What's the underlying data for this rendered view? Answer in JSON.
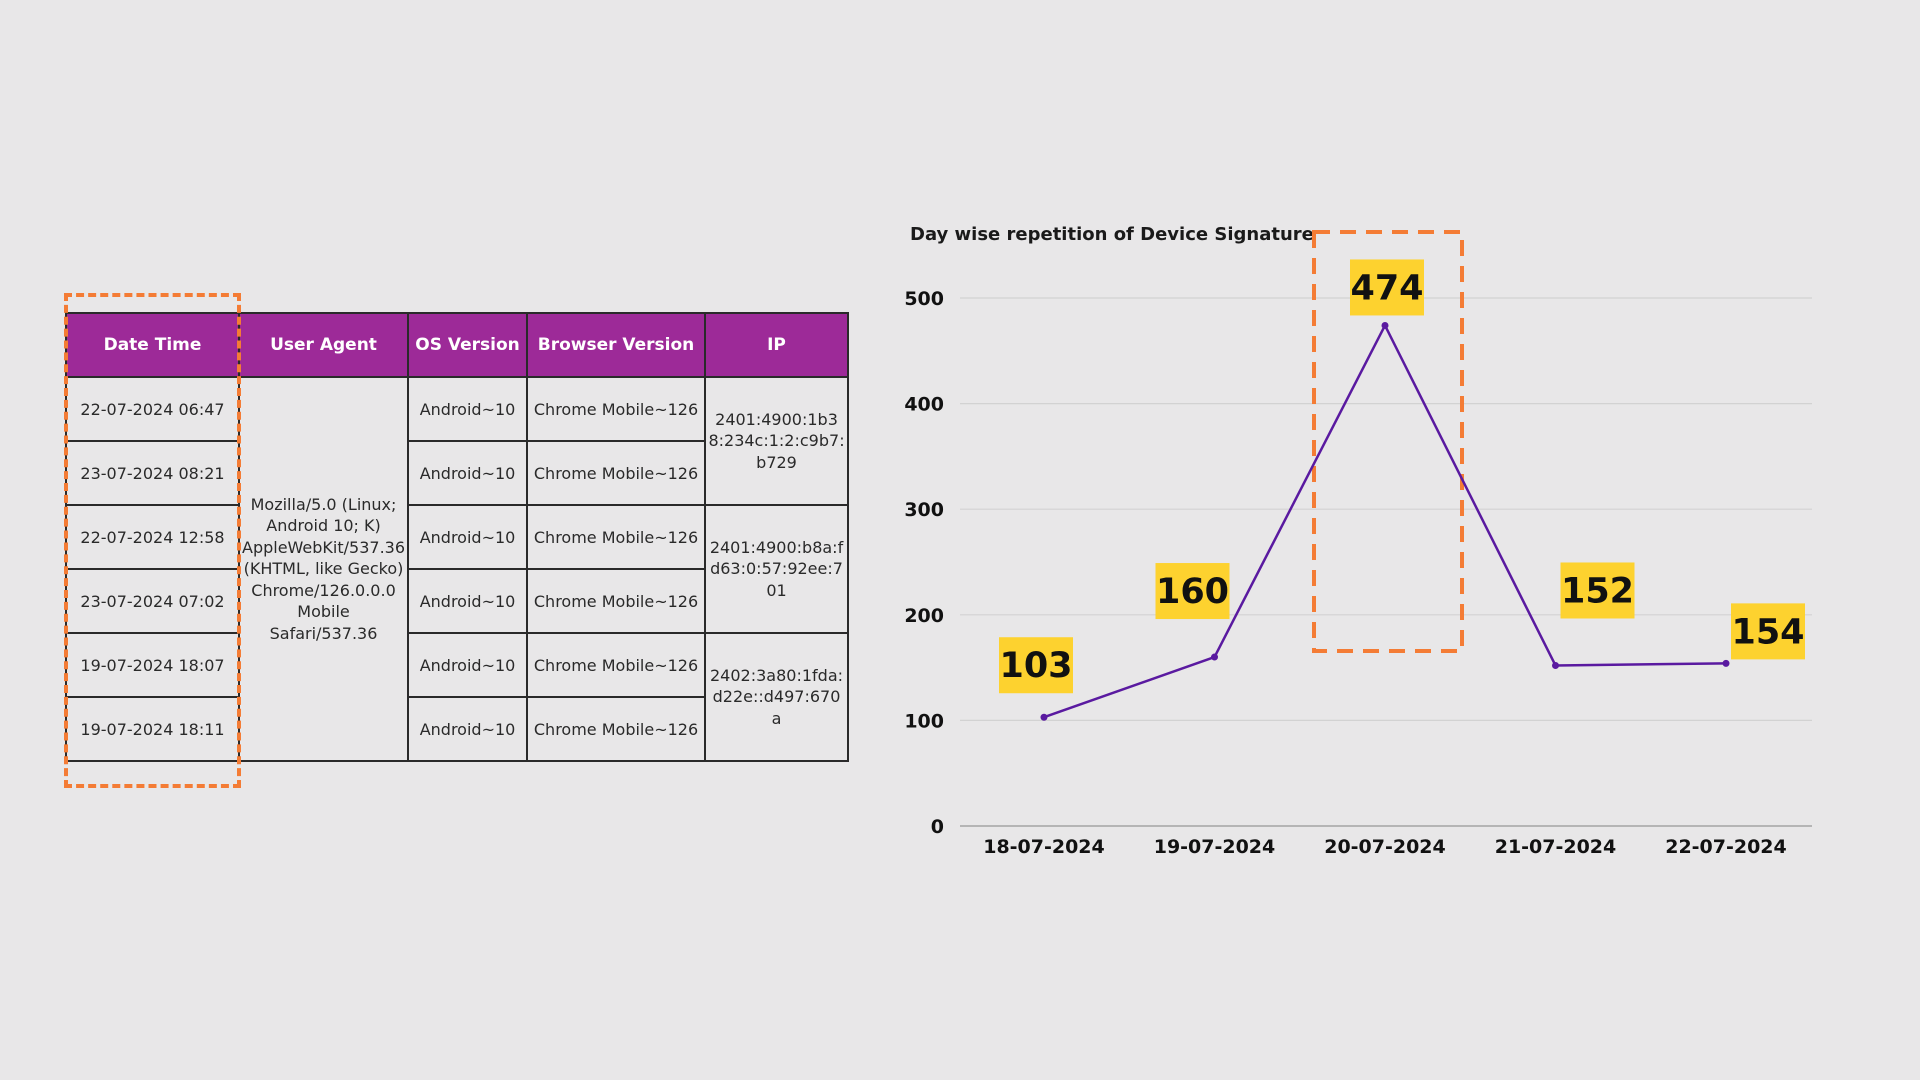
{
  "table": {
    "headers": [
      "Date Time",
      "User Agent",
      "OS Version",
      "Browser Version",
      "IP"
    ],
    "date_times": [
      "22-07-2024 06:47",
      "23-07-2024 08:21",
      "22-07-2024 12:58",
      "23-07-2024 07:02",
      "19-07-2024 18:07",
      "19-07-2024 18:11"
    ],
    "user_agent": "Mozilla/5.0 (Linux; Android 10; K) AppleWebKit/537.36 (KHTML, like Gecko) Chrome/126.0.0.0 Mobile Safari/537.36",
    "os_version": "Android~10",
    "browser_version": "Chrome Mobile~126",
    "ips": [
      "2401:4900:1b38:234c:1:2:c9b7:b729",
      "2401:4900:b8a:fd63:0:57:92ee:701",
      "2402:3a80:1fda:d22e::d497:670a"
    ],
    "header_color": "#9d2a98"
  },
  "highlight_color": "#f47c35",
  "chart_data": {
    "type": "line",
    "title": "Day wise repetition of Device Signature",
    "categories": [
      "18-07-2024",
      "19-07-2024",
      "20-07-2024",
      "21-07-2024",
      "22-07-2024"
    ],
    "values": [
      103,
      160,
      474,
      152,
      154
    ],
    "ylim": [
      0,
      500
    ],
    "yticks": [
      0,
      100,
      200,
      300,
      400,
      500
    ],
    "grid": true,
    "line_color": "#5a1aa0",
    "label_bg": "#fdd22f",
    "highlighted_category": "20-07-2024"
  }
}
